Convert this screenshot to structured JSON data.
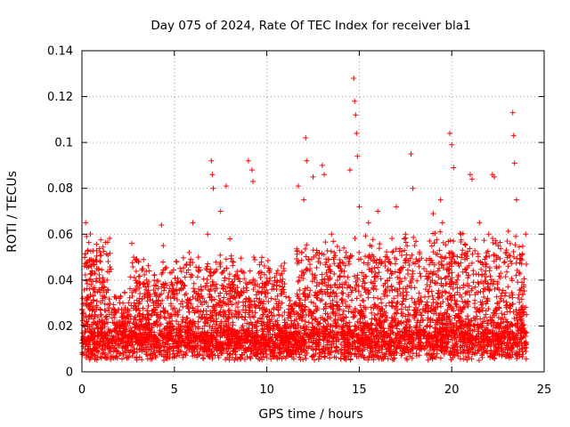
{
  "chart_data": {
    "type": "scatter",
    "title": "Day 075 of 2024, Rate Of TEC Index for receiver bla1",
    "xlabel": "GPS time / hours",
    "ylabel": "ROTI / TECUs",
    "xlim": [
      0,
      25
    ],
    "ylim": [
      0,
      0.14
    ],
    "x_ticks": [
      "0",
      "5",
      "10",
      "15",
      "20",
      "25"
    ],
    "y_ticks": [
      "0",
      "0.02",
      "0.04",
      "0.06",
      "0.08",
      "0.1",
      "0.12",
      "0.14"
    ],
    "grid": true,
    "marker": "+",
    "color": "#ff0000",
    "series": [
      {
        "name": "bla1",
        "x": [
          0.2,
          0.25,
          0.3,
          0.5,
          0.8,
          1.0,
          1.2,
          1.5,
          2.0,
          2.7,
          2.8,
          3.0,
          3.5,
          4.3,
          4.4,
          4.5,
          5.0,
          5.8,
          6.0,
          6.3,
          6.8,
          7.0,
          7.05,
          7.1,
          7.5,
          7.8,
          8.0,
          8.5,
          9.0,
          9.2,
          9.25,
          9.3,
          9.5,
          10.0,
          10.5,
          11.0,
          11.5,
          11.7,
          12.0,
          12.1,
          12.15,
          12.5,
          13.0,
          13.1,
          13.5,
          14.0,
          14.5,
          14.7,
          14.75,
          14.8,
          14.85,
          14.9,
          15.0,
          15.5,
          16.0,
          16.5,
          17.0,
          17.5,
          17.8,
          17.9,
          18.0,
          18.5,
          19.0,
          19.4,
          19.5,
          19.9,
          20.0,
          20.1,
          20.5,
          21.0,
          21.1,
          21.5,
          22.0,
          22.2,
          22.3,
          22.5,
          23.0,
          23.3,
          23.35,
          23.4,
          23.5,
          24.0
        ],
        "y": [
          0.065,
          0.059,
          0.048,
          0.038,
          0.045,
          0.048,
          0.04,
          0.025,
          0.018,
          0.056,
          0.05,
          0.012,
          0.04,
          0.064,
          0.055,
          0.045,
          0.035,
          0.052,
          0.065,
          0.05,
          0.06,
          0.092,
          0.086,
          0.08,
          0.07,
          0.081,
          0.058,
          0.033,
          0.092,
          0.088,
          0.083,
          0.05,
          0.035,
          0.02,
          0.015,
          0.01,
          0.025,
          0.081,
          0.075,
          0.102,
          0.092,
          0.085,
          0.09,
          0.086,
          0.06,
          0.045,
          0.088,
          0.128,
          0.118,
          0.112,
          0.104,
          0.094,
          0.072,
          0.065,
          0.07,
          0.05,
          0.072,
          0.06,
          0.095,
          0.08,
          0.055,
          0.045,
          0.069,
          0.075,
          0.065,
          0.104,
          0.099,
          0.089,
          0.06,
          0.086,
          0.084,
          0.065,
          0.06,
          0.086,
          0.085,
          0.05,
          0.057,
          0.113,
          0.103,
          0.091,
          0.075,
          0.06
        ]
      }
    ]
  }
}
